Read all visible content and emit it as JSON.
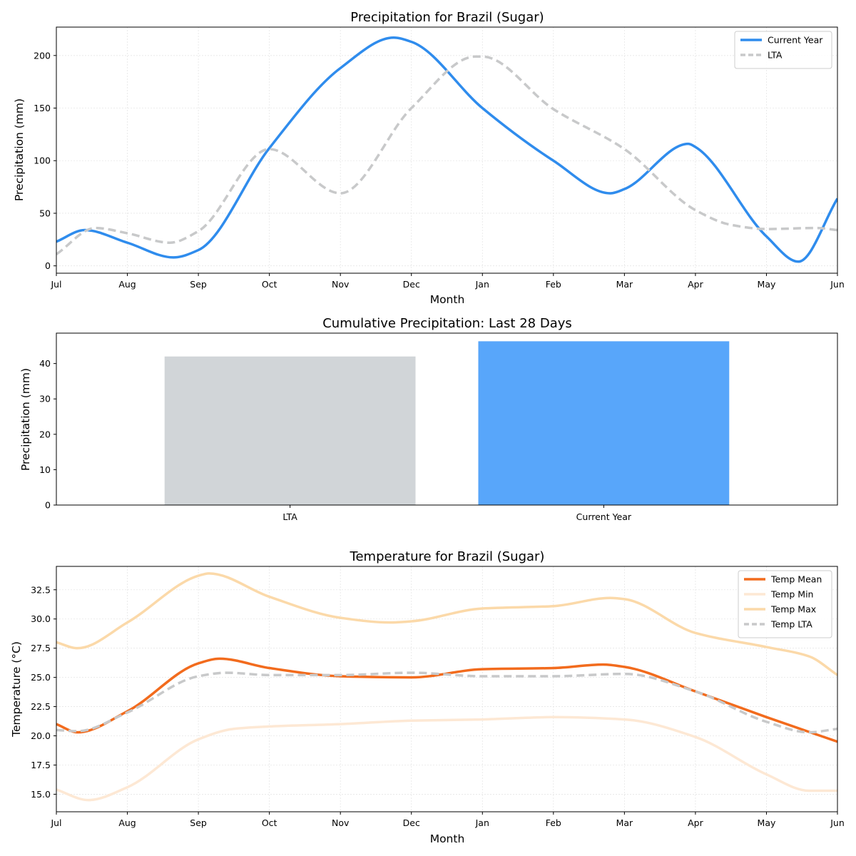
{
  "chart_data": [
    {
      "type": "line",
      "title": "Precipitation for Brazil (Sugar)",
      "xlabel": "Month",
      "ylabel": "Precipitation (mm)",
      "x_ticks": [
        "Jul",
        "Aug",
        "Sep",
        "Oct",
        "Nov",
        "Dec",
        "Jan",
        "Feb",
        "Mar",
        "Apr",
        "May",
        "Jun"
      ],
      "xlim": [
        0,
        11
      ],
      "ylim": [
        -7,
        227
      ],
      "y_ticks": [
        0,
        50,
        100,
        150,
        200
      ],
      "grid": true,
      "legend_position": "top-right",
      "series": [
        {
          "name": "Current Year",
          "color": "#2f8ced",
          "style": "solid",
          "points": [
            [
              0,
              23
            ],
            [
              0.4,
              34
            ],
            [
              1,
              22
            ],
            [
              1.65,
              8
            ],
            [
              2,
              15
            ],
            [
              3,
              112
            ],
            [
              4,
              188
            ],
            [
              4.75,
              217
            ],
            [
              5,
              213
            ],
            [
              6,
              150
            ],
            [
              7,
              100
            ],
            [
              7.8,
              69
            ],
            [
              8,
              73
            ],
            [
              8.9,
              116
            ],
            [
              9,
              113
            ],
            [
              10,
              28
            ],
            [
              10.45,
              4
            ],
            [
              11,
              64
            ]
          ]
        },
        {
          "name": "LTA",
          "color": "#c8c9ca",
          "style": "dashed",
          "points": [
            [
              0,
              11
            ],
            [
              0.55,
              36
            ],
            [
              1,
              31
            ],
            [
              1.6,
              22
            ],
            [
              2,
              33
            ],
            [
              3,
              111
            ],
            [
              4,
              69
            ],
            [
              5,
              150
            ],
            [
              5.9,
              199
            ],
            [
              6,
              199
            ],
            [
              7,
              149
            ],
            [
              8,
              111
            ],
            [
              9,
              53
            ],
            [
              9.5,
              39
            ],
            [
              10,
              35
            ],
            [
              10.7,
              36
            ],
            [
              11,
              34
            ]
          ]
        }
      ]
    },
    {
      "type": "bar",
      "title": "Cumulative Precipitation: Last 28 Days",
      "ylabel": "Precipitation (mm)",
      "categories": [
        "LTA",
        "Current Year"
      ],
      "values": [
        42,
        46.3
      ],
      "colors": [
        "#d1d5d8",
        "#58a6fa"
      ],
      "ylim": [
        0,
        48.6
      ],
      "y_ticks": [
        0,
        10,
        20,
        30,
        40
      ]
    },
    {
      "type": "line",
      "title": "Temperature for Brazil (Sugar)",
      "xlabel": "Month",
      "ylabel": "Temperature (°C)",
      "x_ticks": [
        "Jul",
        "Aug",
        "Sep",
        "Oct",
        "Nov",
        "Dec",
        "Jan",
        "Feb",
        "Mar",
        "Apr",
        "May",
        "Jun"
      ],
      "xlim": [
        0,
        11
      ],
      "ylim": [
        13.5,
        34.5
      ],
      "y_ticks": [
        "15.0",
        "17.5",
        "20.0",
        "22.5",
        "25.0",
        "27.5",
        "30.0",
        "32.5"
      ],
      "grid": true,
      "legend_position": "top-right",
      "series": [
        {
          "name": "Temp Mean",
          "color": "#f26b1d",
          "style": "solid",
          "points": [
            [
              0,
              21
            ],
            [
              0.3,
              20.3
            ],
            [
              1,
              22.1
            ],
            [
              2,
              26.2
            ],
            [
              2.3,
              26.6
            ],
            [
              3,
              25.8
            ],
            [
              4,
              25.1
            ],
            [
              5,
              25
            ],
            [
              6,
              25.7
            ],
            [
              7,
              25.8
            ],
            [
              7.7,
              26.1
            ],
            [
              8,
              25.9
            ],
            [
              9,
              23.8
            ],
            [
              10,
              21.6
            ],
            [
              11,
              19.5
            ]
          ]
        },
        {
          "name": "Temp Min",
          "color": "#fde8d4",
          "style": "solid",
          "points": [
            [
              0,
              15.4
            ],
            [
              0.45,
              14.5
            ],
            [
              1,
              15.6
            ],
            [
              2,
              19.7
            ],
            [
              2.5,
              20.6
            ],
            [
              3,
              20.8
            ],
            [
              4,
              21
            ],
            [
              5,
              21.3
            ],
            [
              6,
              21.4
            ],
            [
              7,
              21.6
            ],
            [
              8,
              21.4
            ],
            [
              9,
              19.9
            ],
            [
              10,
              16.7
            ],
            [
              10.6,
              15.3
            ],
            [
              11,
              15.3
            ]
          ]
        },
        {
          "name": "Temp Max",
          "color": "#fbd9a9",
          "style": "solid",
          "points": [
            [
              0,
              28
            ],
            [
              0.3,
              27.5
            ],
            [
              1,
              29.7
            ],
            [
              2,
              33.7
            ],
            [
              2.15,
              33.9
            ],
            [
              3,
              31.9
            ],
            [
              4,
              30.1
            ],
            [
              4.7,
              29.7
            ],
            [
              5,
              29.8
            ],
            [
              6,
              30.9
            ],
            [
              7,
              31.1
            ],
            [
              7.8,
              31.8
            ],
            [
              8,
              31.7
            ],
            [
              9,
              28.8
            ],
            [
              10,
              27.6
            ],
            [
              10.6,
              26.8
            ],
            [
              11,
              25.2
            ]
          ]
        },
        {
          "name": "Temp LTA",
          "color": "#c8c9ca",
          "style": "dashed",
          "points": [
            [
              0,
              20.5
            ],
            [
              0.3,
              20.4
            ],
            [
              1,
              22
            ],
            [
              2,
              25.1
            ],
            [
              2.4,
              25.4
            ],
            [
              3,
              25.2
            ],
            [
              4,
              25.2
            ],
            [
              5,
              25.4
            ],
            [
              6,
              25.1
            ],
            [
              7,
              25.1
            ],
            [
              8,
              25.3
            ],
            [
              9,
              23.8
            ],
            [
              10,
              21.2
            ],
            [
              10.6,
              20.3
            ],
            [
              11,
              20.6
            ]
          ]
        }
      ]
    }
  ]
}
